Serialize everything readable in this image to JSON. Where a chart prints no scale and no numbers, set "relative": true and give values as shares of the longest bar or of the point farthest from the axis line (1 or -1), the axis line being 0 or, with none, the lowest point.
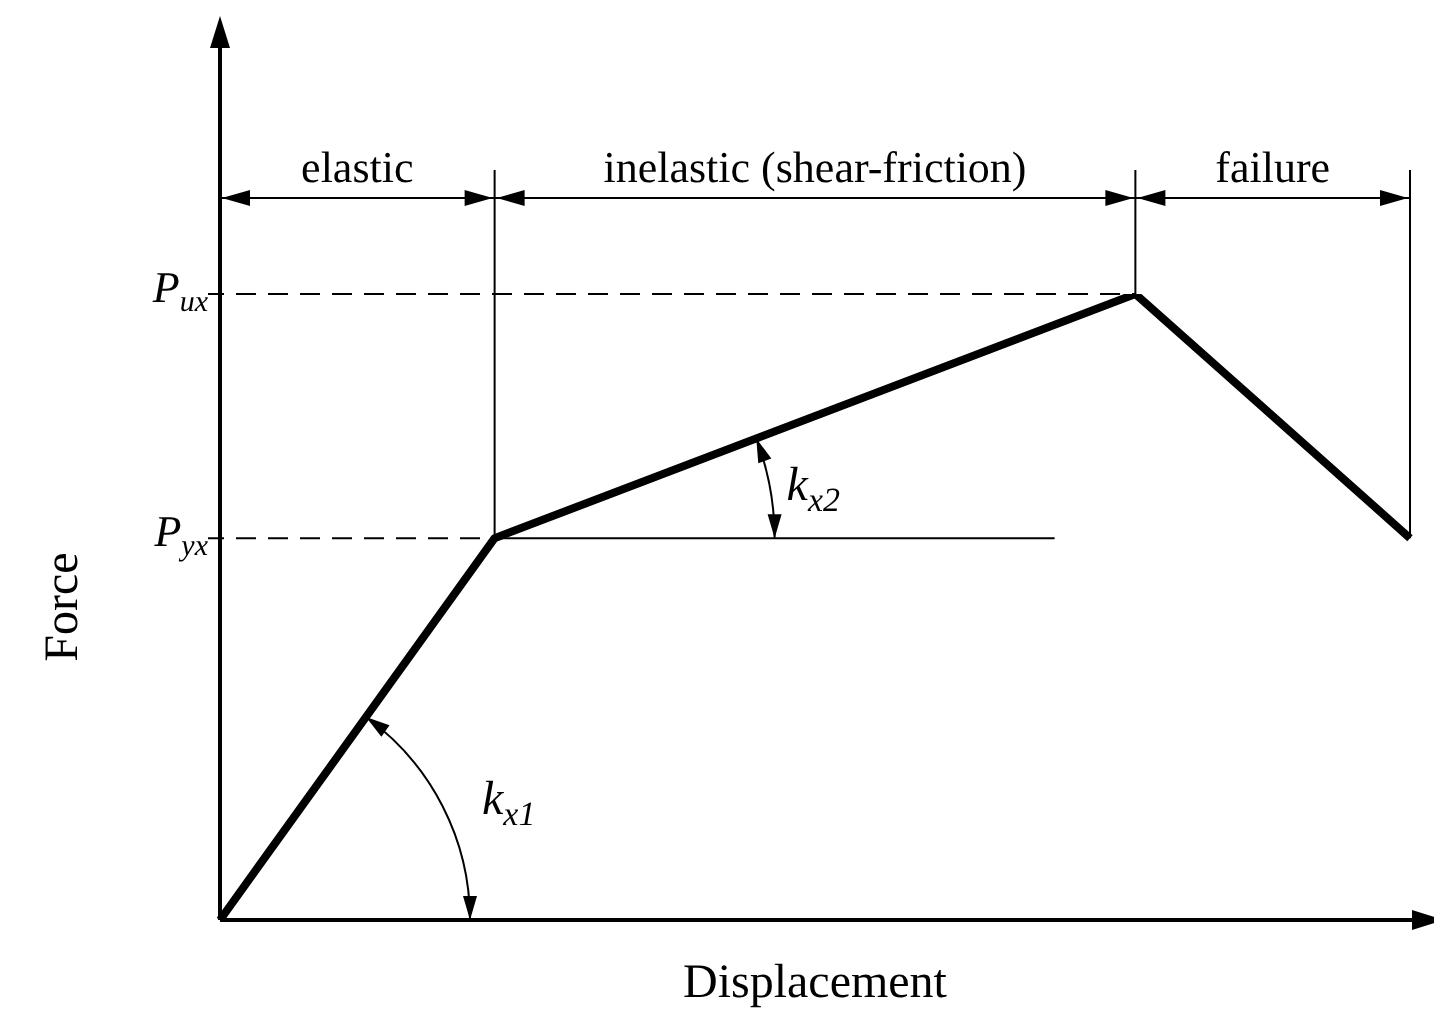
{
  "chart_data": {
    "type": "line",
    "relative": true,
    "xlabel": "Displacement",
    "ylabel": "Force",
    "categories": [
      null,
      null,
      null,
      null,
      null,
      null,
      null,
      null,
      null,
      null,
      null,
      null,
      null,
      null
    ],
    "series": [
      {
        "color": "#000000",
        "values": [
          0,
          null,
          null,
          0.61,
          null,
          null,
          null,
          null,
          null,
          null,
          1,
          null,
          null,
          0.61
        ]
      }
    ],
    "marker": "none",
    "line_style": "solid",
    "legend": false,
    "ref_lines": [
      {
        "axis": "y",
        "value": 0.61,
        "label": "P$_{yx}$",
        "line_style": "dashed"
      },
      {
        "axis": "y",
        "value": 1,
        "label": "P$_{ux}$",
        "line_style": "dashed"
      }
    ],
    "annotations": [
      "elastic",
      "inelastic (shear-friction)",
      "failure",
      "k$_{x1}$",
      "k$_{x2}$"
    ]
  }
}
